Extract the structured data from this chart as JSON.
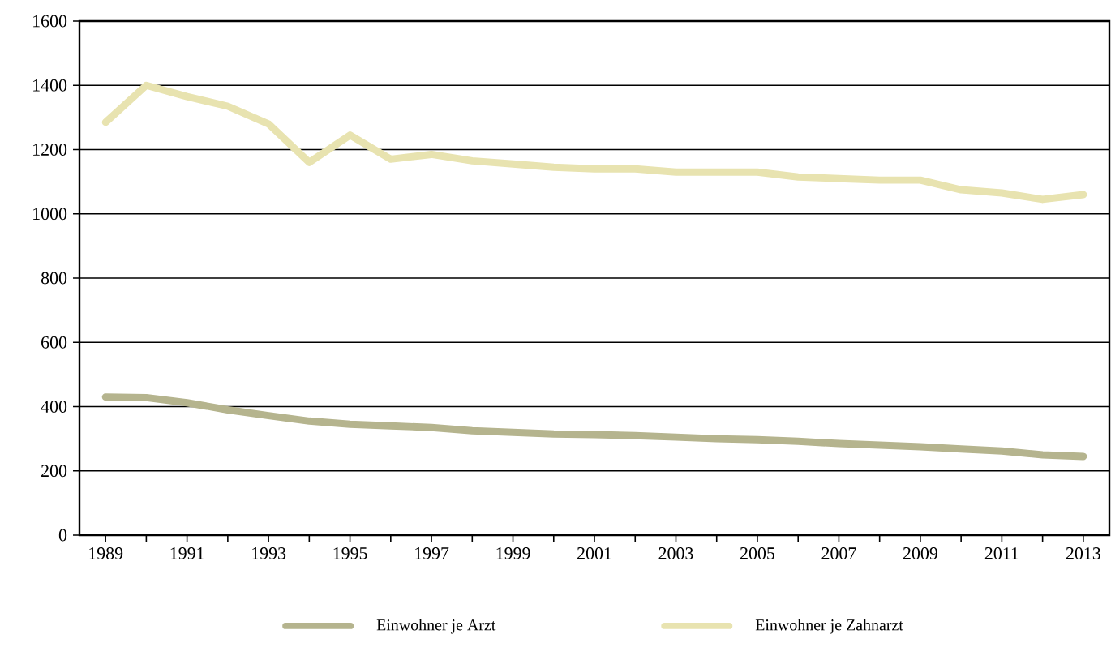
{
  "chart_data": {
    "type": "line",
    "x": [
      1989,
      1990,
      1991,
      1992,
      1993,
      1994,
      1995,
      1996,
      1997,
      1998,
      1999,
      2000,
      2001,
      2002,
      2003,
      2004,
      2005,
      2006,
      2007,
      2008,
      2009,
      2010,
      2011,
      2012,
      2013
    ],
    "series": [
      {
        "name": "Einwohner je Arzt",
        "color": "#b5b48e",
        "values": [
          430,
          428,
          412,
          390,
          372,
          355,
          345,
          340,
          335,
          325,
          320,
          315,
          313,
          310,
          305,
          300,
          297,
          292,
          285,
          280,
          275,
          268,
          262,
          250,
          245
        ]
      },
      {
        "name": "Einwohner je Zahnarzt",
        "color": "#e8e3b0",
        "values": [
          1285,
          1400,
          1365,
          1335,
          1280,
          1160,
          1245,
          1170,
          1185,
          1165,
          1155,
          1145,
          1140,
          1140,
          1130,
          1130,
          1130,
          1115,
          1110,
          1105,
          1105,
          1075,
          1065,
          1045,
          1060
        ]
      }
    ],
    "xlim": [
      1988.36,
      2013.64
    ],
    "ylim": [
      0,
      1600
    ],
    "xticks": [
      1989,
      {
        "value": 1990,
        "label": null
      },
      1991,
      {
        "value": 1992,
        "label": null
      },
      1993,
      {
        "value": 1994,
        "label": null
      },
      1995,
      {
        "value": 1996,
        "label": null
      },
      1997,
      {
        "value": 1998,
        "label": null
      },
      1999,
      {
        "value": 2000,
        "label": null
      },
      2001,
      {
        "value": 2002,
        "label": null
      },
      2003,
      {
        "value": 2004,
        "label": null
      },
      2005,
      {
        "value": 2006,
        "label": null
      },
      2007,
      {
        "value": 2008,
        "label": null
      },
      2009,
      {
        "value": 2010,
        "label": null
      },
      2011,
      {
        "value": 2012,
        "label": null
      },
      2013
    ],
    "yticks": [
      0,
      200,
      400,
      600,
      800,
      1000,
      1200,
      1400,
      1600
    ],
    "grid": "y",
    "legend": "bottom",
    "marker": "none",
    "line_style": "solid"
  }
}
